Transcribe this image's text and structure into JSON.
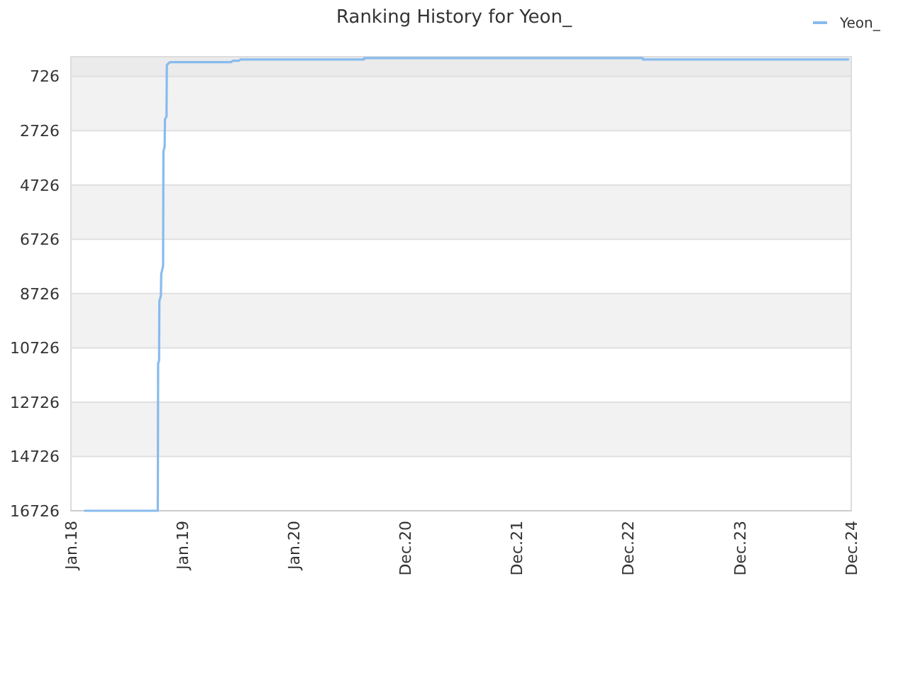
{
  "chart_data": {
    "type": "line",
    "title": "Ranking History for Yeon_",
    "x": [
      "2018-03-08",
      "2018-10-28",
      "2018-10-29",
      "2018-11-01",
      "2018-11-02",
      "2018-11-07",
      "2018-11-08",
      "2018-11-14",
      "2018-11-15",
      "2018-11-19",
      "2018-11-20",
      "2018-11-25",
      "2018-11-26",
      "2018-12-06",
      "2019-06-20",
      "2019-06-26",
      "2019-07-15",
      "2019-07-21",
      "2020-08-20",
      "2020-08-21",
      "2023-02-01",
      "2023-02-02",
      "2024-11-22"
    ],
    "series": [
      {
        "name": "Yeon_",
        "color": "#88bbee",
        "values": [
          16726,
          16726,
          11300,
          11200,
          9000,
          8800,
          8000,
          7700,
          3500,
          3300,
          2300,
          2200,
          300,
          200,
          200,
          150,
          150,
          100,
          100,
          50,
          50,
          100,
          100
        ]
      }
    ],
    "xlim": [
      "2018-01-22",
      "2024-12-02"
    ],
    "xticks": [
      {
        "value": "2018-01-22",
        "label": "Jan.18"
      },
      {
        "value": "2019-01-15",
        "label": "Jan.19"
      },
      {
        "value": "2020-01-08",
        "label": "Jan.20"
      },
      {
        "value": "2020-12-31",
        "label": "Dec.20"
      },
      {
        "value": "2021-12-24",
        "label": "Dec.21"
      },
      {
        "value": "2022-12-17",
        "label": "Dec.22"
      },
      {
        "value": "2023-12-10",
        "label": "Dec.23"
      },
      {
        "value": "2024-12-02",
        "label": "Dec.24"
      }
    ],
    "ylim": [
      16726,
      1
    ],
    "yticks": [
      726,
      2726,
      4726,
      6726,
      8726,
      10726,
      12726,
      14726,
      16726
    ],
    "bands": [
      {
        "axis": "y",
        "from": 1,
        "to": 726,
        "color": "#ebebeb"
      }
    ],
    "grid": "y",
    "legend": "top right",
    "marker": "none"
  }
}
